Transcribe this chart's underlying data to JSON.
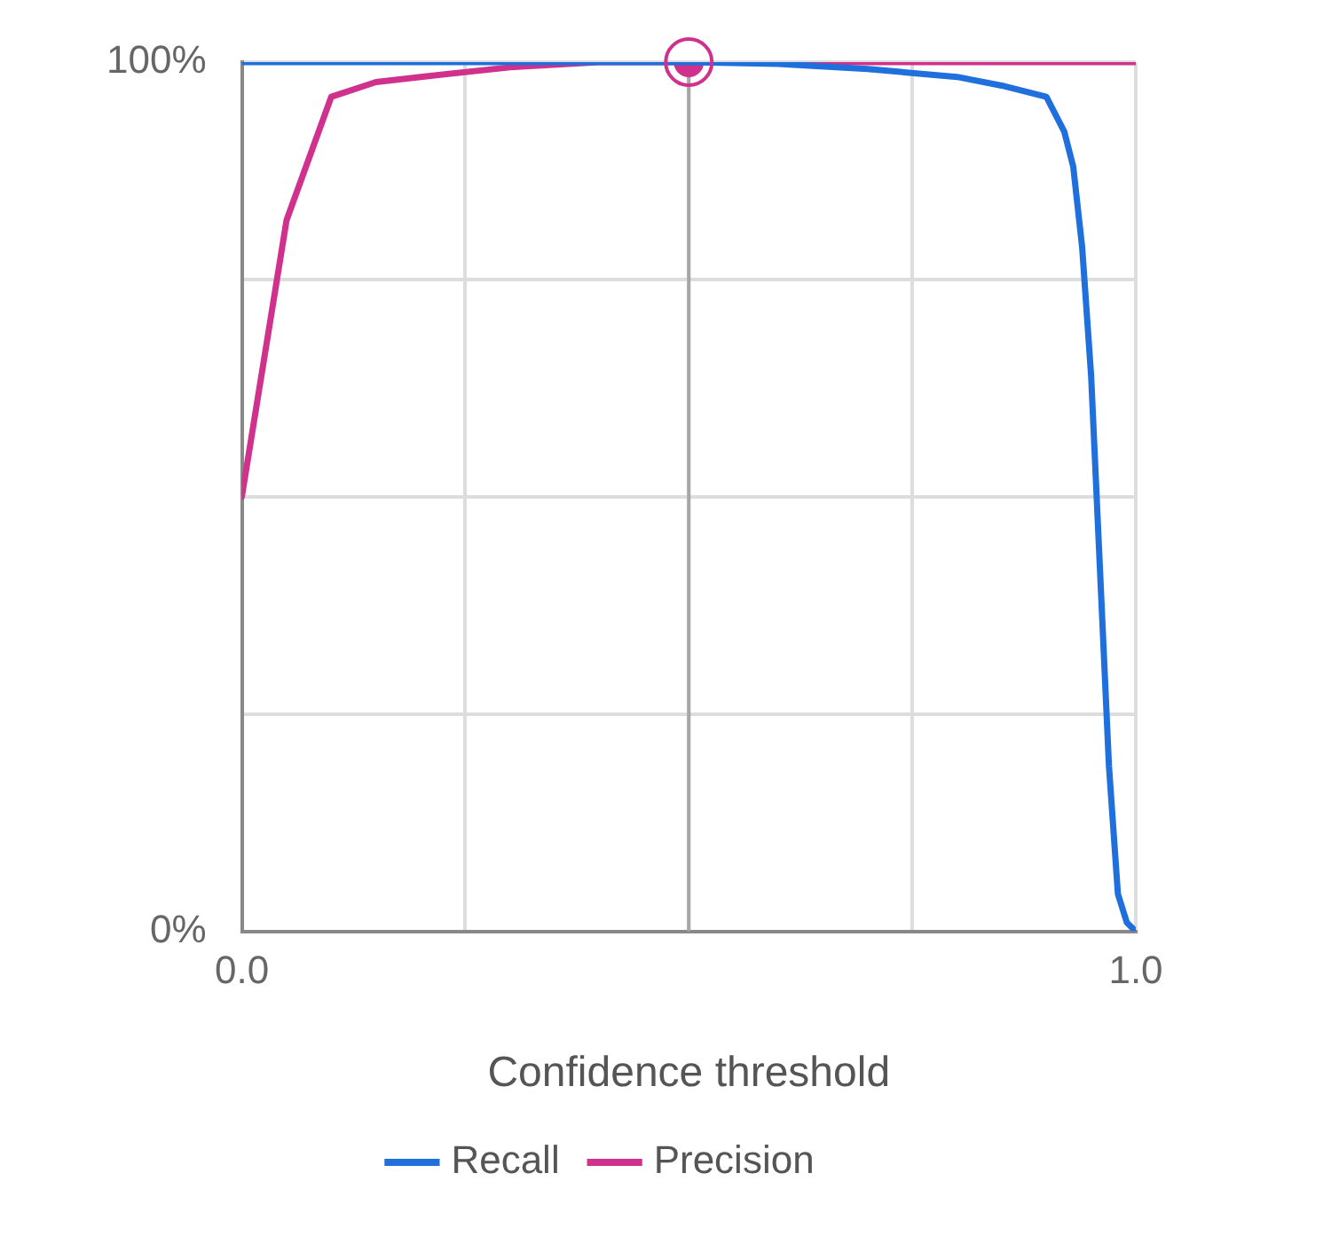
{
  "chart_data": {
    "type": "line",
    "xlabel": "Confidence threshold",
    "xlim": [
      0,
      1
    ],
    "xticks": [
      {
        "value": 0,
        "label": "0.0"
      },
      {
        "value": 0.25,
        "label": null
      },
      {
        "value": 0.5,
        "label": null
      },
      {
        "value": 0.75,
        "label": null
      },
      {
        "value": 1,
        "label": "1.0"
      }
    ],
    "ylim": [
      0,
      100
    ],
    "yticks": [
      {
        "value": 0,
        "label": "0%"
      },
      {
        "value": 25,
        "label": null
      },
      {
        "value": 50,
        "label": null
      },
      {
        "value": 75,
        "label": null
      },
      {
        "value": 100,
        "label": "100%"
      }
    ],
    "grid": true,
    "legend": "bottom",
    "ref_lines": [
      {
        "axis": "x",
        "value": 0.5,
        "label": null,
        "color": "#a6a6a6"
      }
    ],
    "series": [
      {
        "name": "Recall",
        "color": "#1f6fdc",
        "marker": "none",
        "x": [
          0,
          0.5,
          0.6,
          0.7,
          0.8,
          0.85,
          0.9,
          0.92,
          0.93,
          0.94,
          0.95,
          0.96,
          0.97,
          0.98,
          0.99,
          1
        ],
        "values": [
          100,
          100,
          99.8,
          99.2,
          98.3,
          97.3,
          96,
          92,
          88,
          78.7,
          64,
          41.5,
          19,
          4.3,
          1,
          0
        ]
      },
      {
        "name": "Precision",
        "color": "#d0318c",
        "marker": "none",
        "x": [
          0,
          0.05,
          0.1,
          0.15,
          0.2,
          0.3,
          0.4,
          0.5,
          1
        ],
        "values": [
          50,
          81.8,
          96,
          97.7,
          98.3,
          99.4,
          100,
          100,
          100
        ]
      },
      {
        "type": "scatter",
        "color": "#d0318c",
        "marker": "circle",
        "x": [
          0.5
        ],
        "values": [
          100
        ]
      }
    ]
  }
}
